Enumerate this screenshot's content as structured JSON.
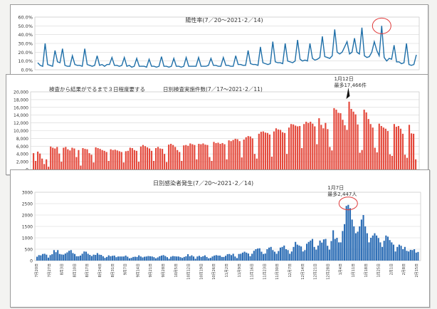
{
  "charts": {
    "positivity": {
      "title": "陽性率(7／20～2021･2／14)",
      "yticks": [
        "60.0%",
        "50.0%",
        "40.0%",
        "30.0%",
        "20.0%",
        "10.0%",
        "0.0%"
      ],
      "color": "#1f6fa8"
    },
    "tests": {
      "title": "日別検査実施件数(7／17～2021･2／11)",
      "note": "検査から結果がでるまで３日程度要する",
      "annotation_line1": "1月12日",
      "annotation_line2": "最多17,466件",
      "yticks": [
        "20,000",
        "18,000",
        "16,000",
        "14,000",
        "12,000",
        "10,000",
        "8,000",
        "6,000",
        "4,000",
        "2,000",
        "0"
      ],
      "color": "#e4493c"
    },
    "cases": {
      "title": "日別感染者発生(7／20～2021･2／14)",
      "annotation_line1": "1月7日",
      "annotation_line2": "最多2,447人",
      "yticks": [
        "3000",
        "2500",
        "2000",
        "1500",
        "1000",
        "500",
        "0"
      ],
      "xticks": [
        "7月20日",
        "7月27日",
        "8月3日",
        "8月10日",
        "8月17日",
        "8月24日",
        "8月31日",
        "9月7日",
        "9月14日",
        "9月21日",
        "9月28日",
        "10月5日",
        "10月12日",
        "10月19日",
        "10月26日",
        "11月2日",
        "11月9日",
        "11月16日",
        "11月23日",
        "11月30日",
        "12月7日",
        "12月14日",
        "12月21日",
        "12月28日",
        "1月4日",
        "1月11日",
        "1月18日",
        "1月25日",
        "2月1日",
        "2月8日",
        "2月15日"
      ],
      "color": "#2c6db5"
    }
  },
  "chart_data": [
    {
      "type": "line",
      "title": "陽性率(7／20～2021･2／14)",
      "x_range": [
        "7月20日",
        "2月14日"
      ],
      "ylim": [
        0,
        60
      ],
      "y_unit": "%",
      "grid": true,
      "series": [
        {
          "values": [
            8,
            5,
            4,
            30,
            6,
            5,
            4,
            22,
            9,
            8,
            24,
            5,
            4,
            4,
            16,
            6,
            5,
            5,
            4,
            24,
            6,
            5,
            4,
            5,
            16,
            5,
            6,
            4,
            6,
            6,
            14,
            5,
            5,
            4,
            5,
            14,
            4,
            5,
            3,
            4,
            13,
            4,
            4,
            4,
            3,
            12,
            4,
            4,
            3,
            4,
            15,
            4,
            4,
            3,
            4,
            13,
            4,
            4,
            3,
            4,
            14,
            4,
            4,
            4,
            4,
            14,
            4,
            4,
            4,
            5,
            13,
            5,
            5,
            4,
            4,
            14,
            5,
            5,
            4,
            4,
            16,
            6,
            6,
            5,
            5,
            22,
            7,
            6,
            6,
            5,
            26,
            8,
            7,
            6,
            7,
            32,
            9,
            8,
            8,
            7,
            30,
            10,
            9,
            8,
            10,
            34,
            12,
            10,
            11,
            10,
            30,
            13,
            11,
            12,
            14,
            38,
            15,
            14,
            13,
            16,
            46,
            20,
            18,
            20,
            26,
            32,
            18,
            20,
            36,
            20,
            18,
            48,
            16,
            14,
            15,
            20,
            32,
            22,
            16,
            50,
            14,
            10,
            13,
            12,
            28,
            9,
            9,
            7,
            8,
            30,
            6,
            5,
            6,
            17
          ]
        }
      ]
    },
    {
      "type": "bar",
      "title": "日別検査実施件数(7／17～2021･2／11)",
      "x_range": [
        "7月17日",
        "2月11日"
      ],
      "ylim": [
        0,
        20000
      ],
      "grid": true,
      "annotation": "1月12日 最多17,466件",
      "series": [
        {
          "values": [
            4200,
            2200,
            4600,
            4100,
            2800,
            1400,
            2600,
            700,
            5900,
            5600,
            5400,
            5800,
            4100,
            2000,
            5600,
            5800,
            5200,
            4900,
            5600,
            5400,
            3200,
            5000,
            1000,
            5500,
            5300,
            5200,
            4200,
            3800,
            1800,
            5700,
            5500,
            5300,
            5000,
            4800,
            4500,
            2200,
            5200,
            5000,
            5100,
            4900,
            4700,
            4500,
            1800,
            4700,
            4800,
            5600,
            5500,
            5000,
            4800,
            2000,
            5900,
            6300,
            6000,
            5700,
            5400,
            4800,
            2200,
            5500,
            5800,
            5400,
            5300,
            4000,
            1900,
            6400,
            6600,
            6300,
            5800,
            5000,
            4500,
            2200,
            6200,
            6300,
            6100,
            6700,
            6500,
            6300,
            2600,
            6600,
            6500,
            6700,
            6400,
            6300,
            3200,
            2200,
            7100,
            6800,
            6900,
            6600,
            6800,
            6500,
            2600,
            7500,
            7300,
            7600,
            7900,
            7800,
            7300,
            3100,
            7700,
            8300,
            8600,
            8500,
            8000,
            4000,
            2800,
            9200,
            9700,
            9800,
            9500,
            9400,
            9000,
            3300,
            9800,
            10600,
            10300,
            10200,
            9600,
            9400,
            4000,
            10800,
            11700,
            11600,
            11300,
            11100,
            11200,
            5500,
            11700,
            12300,
            12000,
            12300,
            11800,
            11100,
            6500,
            13200,
            11500,
            10600,
            12000,
            10400,
            5800,
            4900,
            15800,
            15400,
            14600,
            14500,
            12800,
            11400,
            10200,
            17466,
            15600,
            14900,
            14200,
            11600,
            4300,
            5000,
            15400,
            14700,
            13000,
            11700,
            10800,
            5600,
            4400,
            11800,
            11200,
            10800,
            10500,
            9900,
            3900,
            3500,
            11700,
            11000,
            11200,
            10500,
            9200,
            3800,
            3000,
            11500,
            9300,
            9200,
            2600
          ]
        }
      ]
    },
    {
      "type": "bar",
      "title": "日別感染者発生(7／20～2021･2／14)",
      "x_range": [
        "7月20日",
        "2月14日"
      ],
      "ylim": [
        0,
        3000
      ],
      "grid": true,
      "annotation": "1月7日 最多2,447人",
      "categories_ticks": [
        "7月20日",
        "7月27日",
        "8月3日",
        "8月10日",
        "8月17日",
        "8月24日",
        "8月31日",
        "9月7日",
        "9月14日",
        "9月21日",
        "9月28日",
        "10月5日",
        "10月12日",
        "10月19日",
        "10月26日",
        "11月2日",
        "11月9日",
        "11月16日",
        "11月23日",
        "11月30日",
        "12月7日",
        "12月14日",
        "12月21日",
        "12月28日",
        "1月4日",
        "1月11日",
        "1月18日",
        "1月25日",
        "2月1日",
        "2月8日",
        "2月15日"
      ],
      "series": [
        {
          "values": [
            170,
            240,
            230,
            290,
            300,
            260,
            130,
            240,
            280,
            460,
            370,
            460,
            290,
            270,
            260,
            310,
            360,
            430,
            460,
            330,
            290,
            190,
            190,
            220,
            300,
            400,
            390,
            300,
            250,
            200,
            260,
            250,
            330,
            260,
            250,
            190,
            120,
            160,
            230,
            190,
            210,
            220,
            150,
            180,
            180,
            180,
            180,
            220,
            170,
            100,
            120,
            160,
            170,
            160,
            230,
            180,
            140,
            170,
            180,
            200,
            190,
            180,
            150,
            100,
            140,
            190,
            220,
            240,
            200,
            150,
            80,
            170,
            200,
            190,
            180,
            180,
            150,
            120,
            160,
            190,
            280,
            190,
            230,
            180,
            80,
            180,
            210,
            160,
            190,
            230,
            160,
            100,
            120,
            180,
            220,
            240,
            220,
            220,
            160,
            160,
            210,
            280,
            290,
            240,
            300,
            180,
            110,
            290,
            300,
            350,
            390,
            350,
            310,
            190,
            300,
            430,
            500,
            530,
            540,
            390,
            290,
            310,
            500,
            570,
            600,
            460,
            390,
            300,
            420,
            570,
            600,
            660,
            500,
            460,
            300,
            400,
            600,
            820,
            700,
            660,
            620,
            400,
            460,
            740,
            820,
            880,
            950,
            600,
            480,
            660,
            880,
            790,
            930,
            950,
            650,
            480,
            860,
            1330,
            950,
            1000,
            800,
            800,
            1300,
            1600,
            2400,
            2447,
            2300,
            1800,
            1500,
            1200,
            1270,
            1500,
            1800,
            2000,
            1500,
            1200,
            800,
            1000,
            1100,
            1200,
            1100,
            990,
            800,
            600,
            870,
            1100,
            1050,
            900,
            800,
            700,
            400,
            600,
            700,
            650,
            500,
            600,
            430,
            400,
            470,
            460,
            500,
            350,
            380
          ]
        }
      ]
    }
  ]
}
